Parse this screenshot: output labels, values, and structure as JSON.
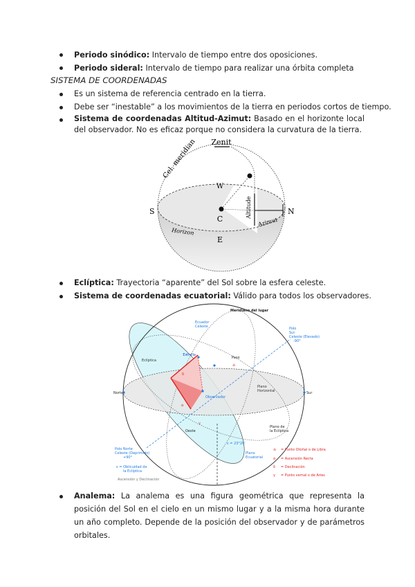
{
  "list1": [
    {
      "term": "Periodo sinódico:",
      "text": " Intervalo de tiempo entre dos oposiciones."
    },
    {
      "term": "Periodo sideral:",
      "text": " Intervalo de tiempo para realizar una órbita completa"
    }
  ],
  "heading": "SISTEMA DE COORDENADAS",
  "list2": [
    {
      "text": "Es un sistema de referencia centrado en la tierra."
    },
    {
      "text": "Debe ser “inestable” a los movimientos de la tierra en periodos cortos de tiempo."
    },
    {
      "term": "Sistema de coordenadas Altitud-Azimut:",
      "text": " Basado en el horizonte local del observador. No es eficaz porque no considera la curvatura de la tierra."
    }
  ],
  "diagram1": {
    "zenit": "Zenit",
    "meridian": "Cel. meridian",
    "w": "W",
    "s": "S",
    "n": "N",
    "c": "C",
    "e": "E",
    "horizon": "Horizon",
    "altitude": "Altitude",
    "azimut": "Azimut"
  },
  "list3": [
    {
      "term": "Eclíptica:",
      "text": " Trayectoria “aparente” del Sol sobre la esfera celeste."
    },
    {
      "term": "Sistema de coordenadas ecuatorial:",
      "text": " Válido para todos los observadores."
    }
  ],
  "diagram2": {
    "meridiano": "Meridiano del lugar",
    "ecuador": [
      "Ecuador",
      "Celeste"
    ],
    "polo_sur": [
      "Polo",
      "Sur",
      "Celeste (Elevado)",
      "-90°"
    ],
    "ecliptica": "Eclíptica",
    "estrella": "Estrella",
    "paso": "Paso",
    "plano_horizontal": [
      "Plano",
      "Horizontal"
    ],
    "norte": "Norte",
    "sur": "Sur",
    "observador": "Observador",
    "oeste": "Oeste",
    "plano_ecliptica": [
      "Plano de",
      "la Eclíptica"
    ],
    "epsilon": "ε = 23°26'",
    "plano_ecuatorial": [
      "Plano",
      "Ecuatorial"
    ],
    "polo_norte": [
      "Polo Norte",
      "Celeste (Deprimido)",
      "+90°"
    ],
    "oblicuidad": [
      "ε = Oblicuidad de",
      "la Eclíptica"
    ],
    "credit": "Ascensión y Declinación",
    "legend": [
      {
        "sym": "♎",
        "text": "= Punto Otoñal o de Libra"
      },
      {
        "sym": "α",
        "text": "= Ascensión Recta"
      },
      {
        "sym": "δ",
        "text": "= Declinación"
      },
      {
        "sym": "γ",
        "text": "= Punto vernal o de Aries"
      }
    ],
    "colors": {
      "blue": "#1e7be0",
      "red": "#e02020",
      "cyan": "#d8f6fa",
      "grey": "#e6e6e6"
    }
  },
  "list4": [
    {
      "term": "Analema:",
      "text": " La analema es una figura geométrica que representa la posición del Sol en el cielo en un mismo lugar y a la misma hora durante un año completo. Depende de la posición del observador y de parámetros orbitales."
    }
  ]
}
